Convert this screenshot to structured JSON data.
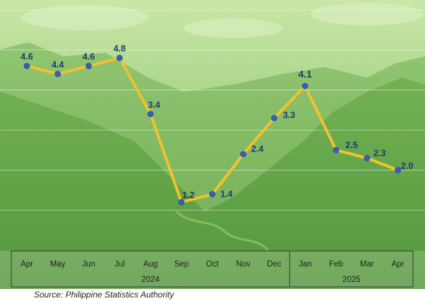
{
  "chart_data": {
    "type": "line",
    "categories": [
      "Apr",
      "May",
      "Jun",
      "Jul",
      "Aug",
      "Sep",
      "Oct",
      "Nov",
      "Dec",
      "Jan",
      "Feb",
      "Mar",
      "Apr"
    ],
    "years": [
      {
        "label": "2024",
        "span": [
          0,
          8
        ]
      },
      {
        "label": "2025",
        "span": [
          9,
          12
        ]
      }
    ],
    "series": [
      {
        "values": [
          4.6,
          4.4,
          4.6,
          4.8,
          3.4,
          1.2,
          1.4,
          2.4,
          3.3,
          4.1,
          2.5,
          2.3,
          2.0
        ]
      }
    ],
    "data_labels": [
      "4.6",
      "4.4",
      "4.6",
      "4.8",
      "3.4",
      "1.2",
      "1.4",
      "2.4",
      "3.3",
      "4.1",
      "2.5",
      "2.3",
      "2.0"
    ],
    "ylim": [
      0,
      6
    ],
    "grid": true,
    "colors": {
      "line": "#f2c12e",
      "marker": "#3a5bbf",
      "label": "#1f3a6e",
      "grid": "#ffffff"
    }
  },
  "source_text": "Source: Philippine Statistics Authority"
}
